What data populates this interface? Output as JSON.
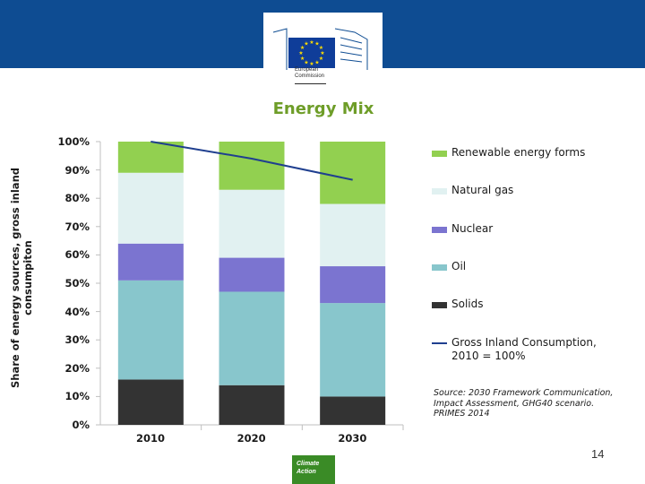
{
  "header": {
    "logo_line1": "European",
    "logo_line2": "Commission"
  },
  "chart_data": {
    "type": "bar",
    "stacked": true,
    "title": "Energy Mix",
    "ylabel_line1": "Share of energy sources, gross inland",
    "ylabel_line2": "consumpiton",
    "categories": [
      "2010",
      "2020",
      "2030"
    ],
    "ylim": [
      0,
      100
    ],
    "yticks": [
      "0%",
      "10%",
      "20%",
      "30%",
      "40%",
      "50%",
      "60%",
      "70%",
      "80%",
      "90%",
      "100%"
    ],
    "series": [
      {
        "name": "Solids",
        "color": "#333333",
        "values": [
          16,
          14,
          10
        ]
      },
      {
        "name": "Oil",
        "color": "#88c6cc",
        "values": [
          35,
          33,
          33
        ]
      },
      {
        "name": "Nuclear",
        "color": "#7b74d0",
        "values": [
          13,
          12,
          13
        ]
      },
      {
        "name": "Natural gas",
        "color": "#e1f1f1",
        "values": [
          25,
          24,
          22
        ]
      },
      {
        "name": "Renewable energy forms",
        "color": "#92d050",
        "values": [
          11,
          17,
          22
        ]
      }
    ],
    "line_series": {
      "name": "Gross Inland Consumption, 2010 = 100%",
      "color": "#1f3f8f",
      "values": [
        100,
        94,
        86.5
      ]
    },
    "legend_order": [
      "Renewable energy forms",
      "Natural gas",
      "Nuclear",
      "Oil",
      "Solids"
    ],
    "legend_line_line1": "Gross Inland Consumption,",
    "legend_line_line2": "2010 = 100%",
    "source_line1": "Source: 2030 Framework Communication,",
    "source_line2": "Impact Assessment, GHG40 scenario.",
    "source_line3": "PRIMES 2014"
  },
  "footer": {
    "page_number": "14",
    "badge_line1": "Climate",
    "badge_line2": "Action"
  }
}
